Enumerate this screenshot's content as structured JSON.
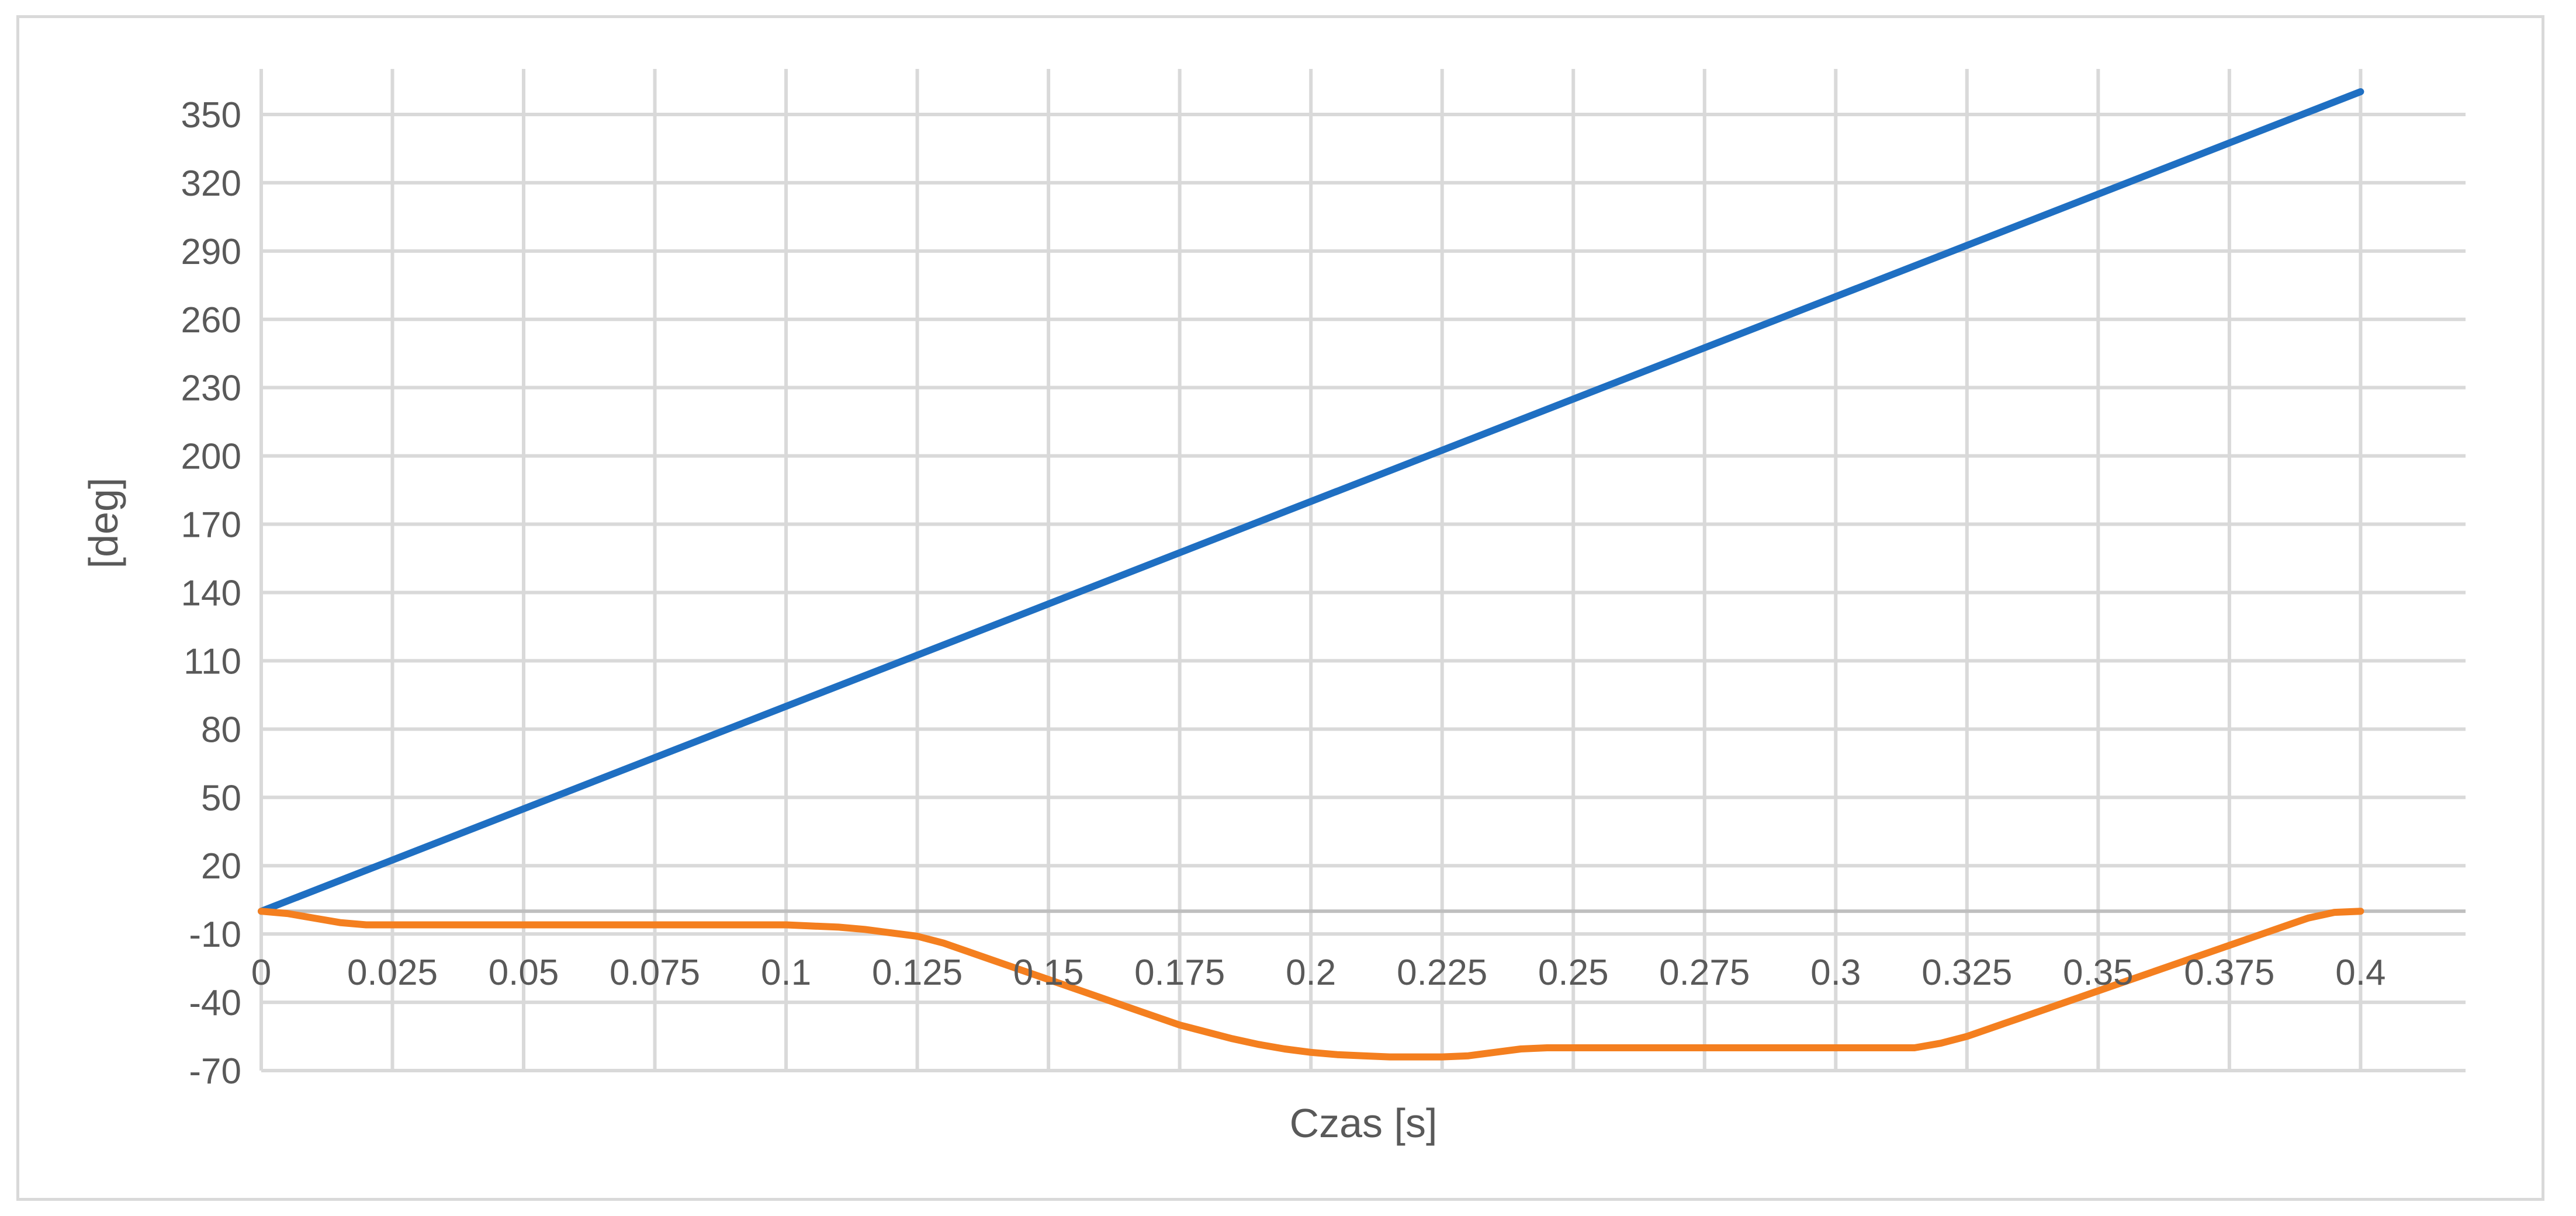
{
  "chart_data": {
    "type": "line",
    "xlabel": "Czas [s]",
    "ylabel": "[deg]",
    "xlim": [
      0,
      0.42
    ],
    "ylim": [
      -70,
      370
    ],
    "x_ticks": [
      "0",
      "0.025",
      "0.05",
      "0.075",
      "0.1",
      "0.125",
      "0.15",
      "0.175",
      "0.2",
      "0.225",
      "0.25",
      "0.275",
      "0.3",
      "0.325",
      "0.35",
      "0.375",
      "0.4"
    ],
    "y_ticks": [
      "350",
      "320",
      "290",
      "260",
      "230",
      "200",
      "170",
      "140",
      "110",
      "80",
      "50",
      "20",
      "-10",
      "-40",
      "-70"
    ],
    "grid": true,
    "legend": "none",
    "series": [
      {
        "color": "#1f6fc2",
        "x": [
          0,
          0.4
        ],
        "y": [
          0,
          360
        ]
      },
      {
        "color": "#f47f1f",
        "x": [
          0,
          0.005,
          0.01,
          0.015,
          0.02,
          0.05,
          0.075,
          0.095,
          0.1,
          0.105,
          0.11,
          0.115,
          0.12,
          0.125,
          0.13,
          0.135,
          0.14,
          0.145,
          0.15,
          0.155,
          0.16,
          0.165,
          0.17,
          0.175,
          0.18,
          0.185,
          0.19,
          0.195,
          0.2,
          0.205,
          0.21,
          0.215,
          0.22,
          0.225,
          0.23,
          0.235,
          0.24,
          0.245,
          0.25,
          0.3,
          0.31,
          0.315,
          0.32,
          0.325,
          0.33,
          0.335,
          0.34,
          0.345,
          0.35,
          0.355,
          0.36,
          0.365,
          0.37,
          0.375,
          0.38,
          0.385,
          0.39,
          0.395,
          0.4
        ],
        "y": [
          0,
          -1,
          -3,
          -5,
          -6,
          -6,
          -6,
          -6,
          -6,
          -6.5,
          -7,
          -8,
          -9.5,
          -11,
          -14,
          -18,
          -22,
          -26,
          -30,
          -34,
          -38,
          -42,
          -46,
          -50,
          -53,
          -56,
          -58.5,
          -60.5,
          -62,
          -63,
          -63.5,
          -64,
          -64,
          -64,
          -63.5,
          -62,
          -60.5,
          -60,
          -60,
          -60,
          -60,
          -60,
          -58,
          -55,
          -51,
          -47,
          -43,
          -39,
          -35,
          -31,
          -27,
          -23,
          -19,
          -15,
          -11,
          -7,
          -3,
          -0.5,
          0
        ]
      }
    ]
  }
}
